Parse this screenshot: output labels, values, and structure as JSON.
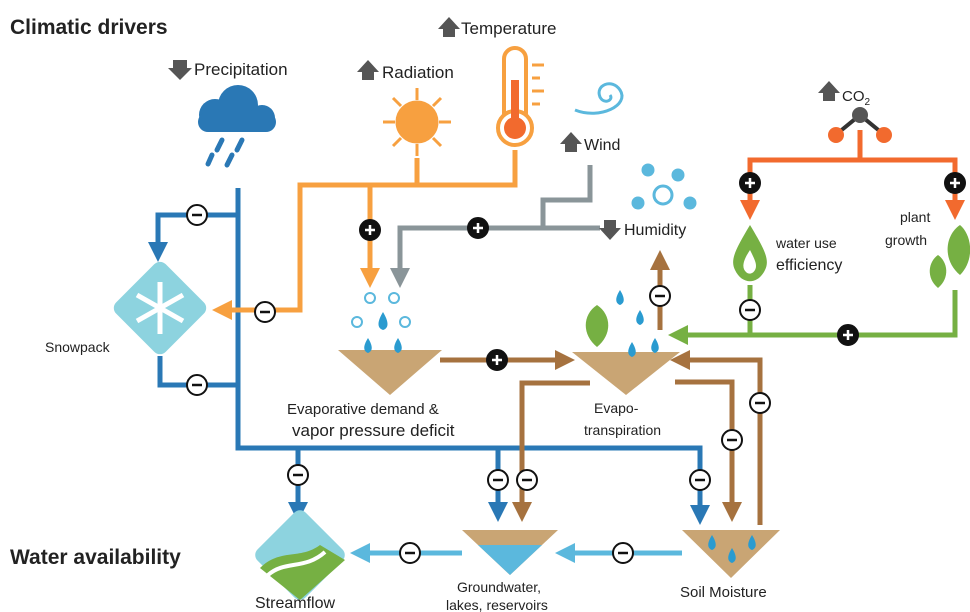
{
  "header": {
    "title": "Climatic drivers"
  },
  "drivers": {
    "precipitation": "Precipitation",
    "radiation": "Radiation",
    "temperature": "Temperature",
    "wind": "Wind",
    "humidity": "Humidity",
    "co2": "CO",
    "co2_sub": "2"
  },
  "processes": {
    "water_use_1": "water use",
    "water_use_2": "efficiency",
    "plant_growth_1": "plant",
    "plant_growth_2": "growth",
    "snowpack": "Snowpack",
    "evap_demand_1": "Evaporative demand &",
    "evap_demand_2": "vapor pressure deficit",
    "et_1": "Evapo-",
    "et_2": "transpiration"
  },
  "footer": {
    "title": "Water availability",
    "streamflow": "Streamflow",
    "groundwater_1": "Groundwater,",
    "groundwater_2": "lakes, reservoirs",
    "soil_moisture": "Soil Moisture"
  }
}
